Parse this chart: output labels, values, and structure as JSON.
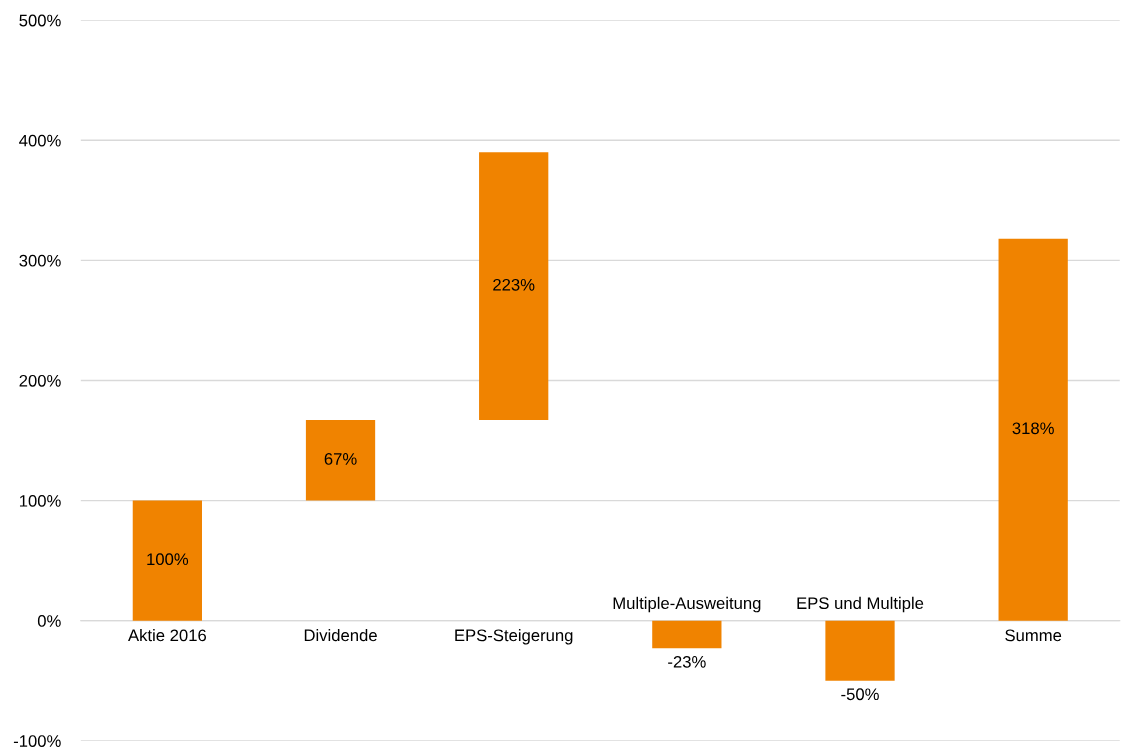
{
  "chart_data": {
    "type": "bar",
    "categories": [
      "Aktie 2016",
      "Dividende",
      "EPS-Steigerung",
      "Multiple-Ausweitung",
      "EPS und Multiple",
      "Summe"
    ],
    "values": [
      100,
      67,
      223,
      -23,
      -50,
      318
    ],
    "base": [
      0,
      100,
      167,
      0,
      0,
      0
    ],
    "value_labels": [
      "100%",
      "67%",
      "223%",
      "-23%",
      "-50%",
      "318%"
    ],
    "color": "#f08300",
    "ylim": [
      -100,
      500
    ],
    "yticks": [
      {
        "value": -100,
        "label": "-100%"
      },
      {
        "value": 0,
        "label": "0%"
      },
      {
        "value": 100,
        "label": "100%"
      },
      {
        "value": 200,
        "label": "200%"
      },
      {
        "value": 300,
        "label": "300%"
      },
      {
        "value": 400,
        "label": "400%"
      },
      {
        "value": 500,
        "label": "500%"
      }
    ],
    "grid": "y"
  }
}
